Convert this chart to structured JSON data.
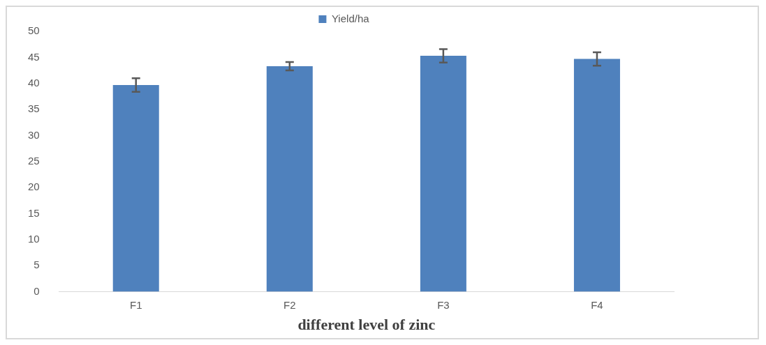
{
  "chart_data": {
    "type": "bar",
    "xlabel": "different level of zinc",
    "categories": [
      "F1",
      "F2",
      "F3",
      "F4"
    ],
    "series": [
      {
        "name": "Yield/ha",
        "color": "#4f81bd",
        "values": [
          39.7,
          43.3,
          45.3,
          44.7
        ],
        "errors": [
          1.3,
          0.8,
          1.3,
          1.3
        ]
      }
    ],
    "ylim": [
      0,
      50
    ],
    "yticks": [
      0,
      5,
      10,
      15,
      20,
      25,
      30,
      35,
      40,
      45,
      50
    ],
    "grid": false,
    "legend": "top"
  }
}
